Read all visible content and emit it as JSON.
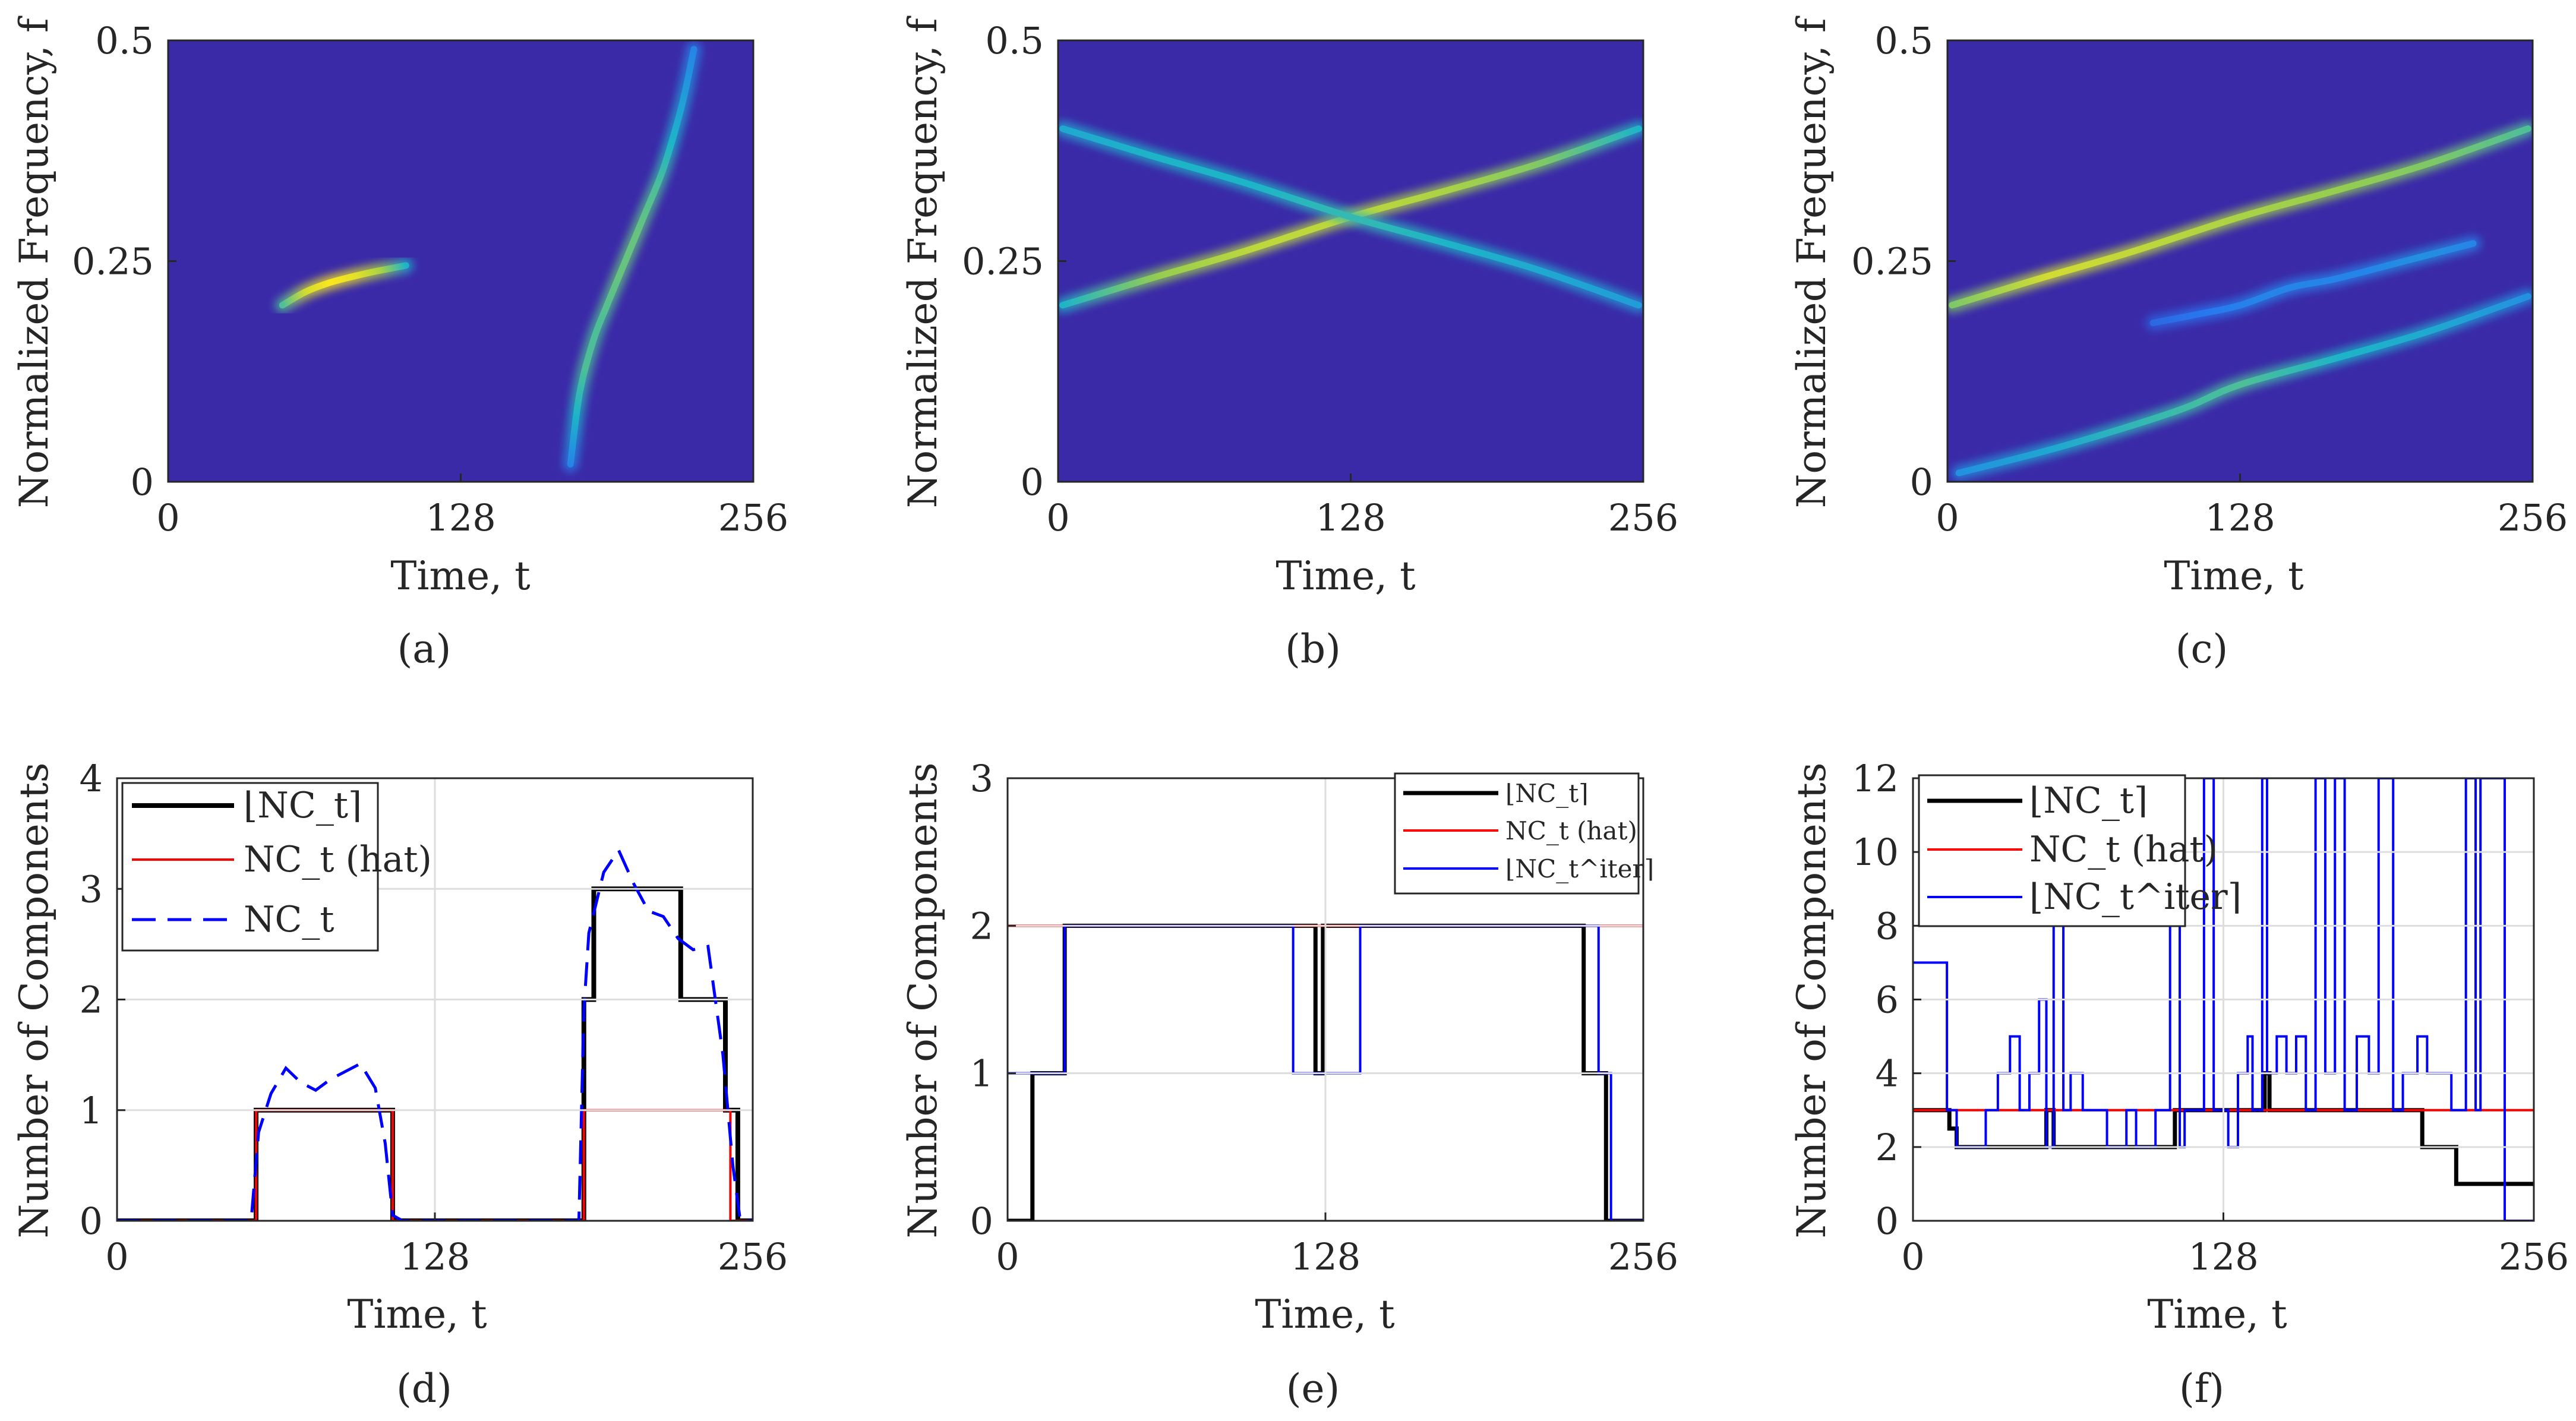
{
  "chart_data": [
    {
      "id": "a",
      "type": "heatmap",
      "panel_label": "(a)",
      "xlabel": "Time, t",
      "ylabel": "Normalized Frequency, f",
      "xlim": [
        0,
        256
      ],
      "ylim": [
        0,
        0.5
      ],
      "xticks": [
        "0",
        "128",
        "256"
      ],
      "yticks": [
        "0",
        "0.25",
        "0.5"
      ],
      "background": "#3b2aa8",
      "ridges": [
        {
          "x": [
            50,
            60,
            70,
            80,
            90,
            104
          ],
          "y": [
            0.2,
            0.215,
            0.225,
            0.232,
            0.238,
            0.245
          ],
          "intensity": [
            0.6,
            0.9,
            1.0,
            0.95,
            0.8,
            0.5
          ]
        },
        {
          "x": [
            176,
            180,
            186,
            192,
            200,
            208,
            216,
            222,
            226,
            230
          ],
          "y": [
            0.02,
            0.1,
            0.16,
            0.2,
            0.25,
            0.3,
            0.35,
            0.4,
            0.44,
            0.49
          ],
          "intensity": [
            0.3,
            0.5,
            0.6,
            0.6,
            0.65,
            0.65,
            0.6,
            0.5,
            0.4,
            0.3
          ]
        }
      ]
    },
    {
      "id": "b",
      "type": "heatmap",
      "panel_label": "(b)",
      "xlabel": "Time, t",
      "ylabel": "Normalized Frequency, f",
      "xlim": [
        0,
        256
      ],
      "ylim": [
        0,
        0.5
      ],
      "xticks": [
        "0",
        "128",
        "256"
      ],
      "yticks": [
        "0",
        "0.25",
        "0.5"
      ],
      "background": "#3b2aa8",
      "ridges": [
        {
          "x": [
            2,
            40,
            80,
            128,
            170,
            210,
            254
          ],
          "y": [
            0.2,
            0.23,
            0.26,
            0.3,
            0.33,
            0.36,
            0.4
          ],
          "intensity": [
            0.5,
            0.75,
            0.85,
            0.85,
            0.8,
            0.7,
            0.5
          ]
        },
        {
          "x": [
            2,
            40,
            80,
            128,
            170,
            210,
            254
          ],
          "y": [
            0.4,
            0.37,
            0.34,
            0.3,
            0.27,
            0.24,
            0.2
          ],
          "intensity": [
            0.45,
            0.5,
            0.5,
            0.55,
            0.5,
            0.45,
            0.4
          ]
        }
      ]
    },
    {
      "id": "c",
      "type": "heatmap",
      "panel_label": "(c)",
      "xlabel": "Time, t",
      "ylabel": "Normalized Frequency, f",
      "xlim": [
        0,
        256
      ],
      "ylim": [
        0,
        0.5
      ],
      "xticks": [
        "0",
        "128",
        "256"
      ],
      "yticks": [
        "0",
        "0.25",
        "0.5"
      ],
      "background": "#3b2aa8",
      "ridges": [
        {
          "x": [
            2,
            40,
            80,
            128,
            170,
            210,
            254
          ],
          "y": [
            0.2,
            0.23,
            0.26,
            0.3,
            0.33,
            0.36,
            0.4
          ],
          "intensity": [
            0.7,
            0.9,
            0.85,
            0.8,
            0.75,
            0.7,
            0.6
          ]
        },
        {
          "x": [
            5,
            50,
            100,
            128,
            170,
            210,
            254
          ],
          "y": [
            0.01,
            0.04,
            0.08,
            0.11,
            0.14,
            0.17,
            0.21
          ],
          "intensity": [
            0.35,
            0.45,
            0.55,
            0.6,
            0.5,
            0.45,
            0.35
          ]
        },
        {
          "x": [
            90,
            110,
            128,
            150,
            170,
            200,
            230
          ],
          "y": [
            0.18,
            0.19,
            0.2,
            0.22,
            0.23,
            0.25,
            0.27
          ],
          "intensity": [
            0.2,
            0.25,
            0.3,
            0.3,
            0.3,
            0.35,
            0.3
          ]
        }
      ]
    },
    {
      "id": "d",
      "type": "line",
      "panel_label": "(d)",
      "xlabel": "Time, t",
      "ylabel": "Number of Components",
      "xlim": [
        0,
        256
      ],
      "ylim": [
        0,
        4
      ],
      "xticks": [
        "0",
        "128",
        "256"
      ],
      "yticks": [
        "0",
        "1",
        "2",
        "3",
        "4"
      ],
      "legend_position": "top-left",
      "series": [
        {
          "name": "⌊NC_t⌉",
          "color": "#000000",
          "style": "solid",
          "width": 8,
          "x": [
            0,
            56,
            56,
            111,
            111,
            188,
            188,
            192,
            192,
            227,
            227,
            245,
            245,
            250,
            250,
            256
          ],
          "y": [
            0,
            0,
            1,
            1,
            0,
            0,
            2,
            2,
            3,
            3,
            2,
            2,
            1,
            1,
            0,
            0
          ]
        },
        {
          "name": "NC_t (hat)",
          "color": "#ff0000",
          "style": "solid",
          "width": 4,
          "x": [
            0,
            56,
            56,
            111,
            111,
            188,
            188,
            247,
            247,
            256
          ],
          "y": [
            0,
            0,
            1,
            1,
            0,
            0,
            1,
            1,
            0,
            0
          ]
        },
        {
          "name": "NC_t",
          "color": "#0000ff",
          "style": "dashed",
          "width": 5,
          "x": [
            0,
            54,
            57,
            62,
            68,
            74,
            80,
            86,
            92,
            98,
            104,
            108,
            111,
            115,
            186,
            188,
            190,
            196,
            202,
            208,
            214,
            220,
            226,
            232,
            238,
            244,
            248,
            251,
            256
          ],
          "y": [
            0,
            0,
            0.8,
            1.15,
            1.38,
            1.25,
            1.18,
            1.28,
            1.35,
            1.42,
            1.2,
            0.7,
            0.05,
            0,
            0,
            1.9,
            2.6,
            3.15,
            3.35,
            3.05,
            2.8,
            2.75,
            2.55,
            2.45,
            2.48,
            1.5,
            0.5,
            0,
            0
          ]
        }
      ]
    },
    {
      "id": "e",
      "type": "line",
      "panel_label": "(e)",
      "xlabel": "Time, t",
      "ylabel": "Number of Components",
      "xlim": [
        0,
        256
      ],
      "ylim": [
        0,
        3
      ],
      "xticks": [
        "0",
        "128",
        "256"
      ],
      "yticks": [
        "0",
        "1",
        "2",
        "3"
      ],
      "legend_position": "top-right",
      "series": [
        {
          "name": "⌊NC_t⌉",
          "color": "#000000",
          "style": "solid",
          "width": 7,
          "x": [
            0,
            10,
            10,
            23,
            23,
            124,
            124,
            127,
            127,
            130,
            130,
            232,
            232,
            241,
            241,
            256
          ],
          "y": [
            0,
            0,
            1,
            1,
            2,
            2,
            1,
            1,
            2,
            2,
            2,
            2,
            1,
            1,
            0,
            0
          ]
        },
        {
          "name": "NC_t (hat)",
          "color": "#ff0000",
          "style": "solid",
          "width": 4,
          "x": [
            0,
            256
          ],
          "y": [
            2,
            2
          ]
        },
        {
          "name": "⌊NC_t^iter⌉",
          "color": "#0000ff",
          "style": "solid",
          "width": 4,
          "x": [
            0,
            23,
            23,
            115,
            115,
            142,
            142,
            238,
            238,
            243,
            243,
            256
          ],
          "y": [
            1,
            1,
            2,
            2,
            1,
            1,
            2,
            2,
            1,
            1,
            0,
            0
          ]
        }
      ]
    },
    {
      "id": "f",
      "type": "line",
      "panel_label": "(f)",
      "xlabel": "Time, t",
      "ylabel": "Number of Components",
      "xlim": [
        0,
        256
      ],
      "ylim": [
        0,
        12
      ],
      "xticks": [
        "0",
        "128",
        "256"
      ],
      "yticks": [
        "0",
        "2",
        "4",
        "6",
        "8",
        "10",
        "12"
      ],
      "legend_position": "top-left",
      "series": [
        {
          "name": "⌊NC_t⌉",
          "color": "#000000",
          "style": "solid",
          "width": 7,
          "x": [
            0,
            15,
            15,
            18,
            18,
            55,
            55,
            58,
            58,
            108,
            108,
            145,
            145,
            147,
            147,
            210,
            210,
            224,
            224,
            256
          ],
          "y": [
            3,
            3,
            2.5,
            2.5,
            2,
            2,
            3,
            3,
            2,
            2,
            3,
            3,
            4,
            4,
            3,
            3,
            2,
            2,
            1,
            1
          ]
        },
        {
          "name": "NC_t (hat)",
          "color": "#ff0000",
          "style": "solid",
          "width": 4,
          "x": [
            0,
            256
          ],
          "y": [
            3,
            3
          ]
        },
        {
          "name": "⌊NC_t^iter⌉",
          "color": "#0000ff",
          "style": "solid",
          "width": 4,
          "x": [
            0,
            14,
            14,
            18,
            18,
            30,
            30,
            35,
            35,
            40,
            40,
            44,
            44,
            48,
            48,
            52,
            52,
            55,
            55,
            58,
            58,
            62,
            62,
            65,
            65,
            70,
            70,
            80,
            80,
            88,
            88,
            92,
            92,
            100,
            100,
            106,
            106,
            110,
            110,
            112,
            112,
            120,
            120,
            124,
            124,
            130,
            130,
            134,
            134,
            138,
            138,
            140,
            140,
            144,
            144,
            146,
            146,
            150,
            150,
            154,
            154,
            158,
            158,
            162,
            162,
            166,
            166,
            170,
            170,
            174,
            174,
            178,
            178,
            183,
            183,
            188,
            188,
            192,
            192,
            198,
            198,
            202,
            202,
            208,
            208,
            212,
            212,
            222,
            222,
            228,
            228,
            232,
            232,
            234,
            234,
            244,
            244,
            256
          ],
          "y": [
            7,
            7,
            3,
            3,
            2,
            2,
            3,
            3,
            4,
            4,
            5,
            5,
            3,
            3,
            4,
            4,
            6,
            6,
            2,
            2,
            8,
            8,
            3,
            3,
            4,
            4,
            3,
            3,
            2,
            2,
            3,
            3,
            2,
            2,
            3,
            3,
            12,
            12,
            2,
            2,
            3,
            3,
            12,
            12,
            3,
            3,
            2,
            2,
            4,
            4,
            5,
            5,
            3,
            3,
            12,
            12,
            4,
            4,
            5,
            5,
            4,
            4,
            5,
            5,
            3,
            3,
            12,
            12,
            4,
            4,
            12,
            12,
            3,
            3,
            5,
            5,
            4,
            4,
            12,
            12,
            3,
            3,
            4,
            4,
            5,
            5,
            4,
            4,
            3,
            3,
            12,
            12,
            3,
            3,
            12,
            12,
            0,
            0
          ]
        }
      ]
    }
  ]
}
